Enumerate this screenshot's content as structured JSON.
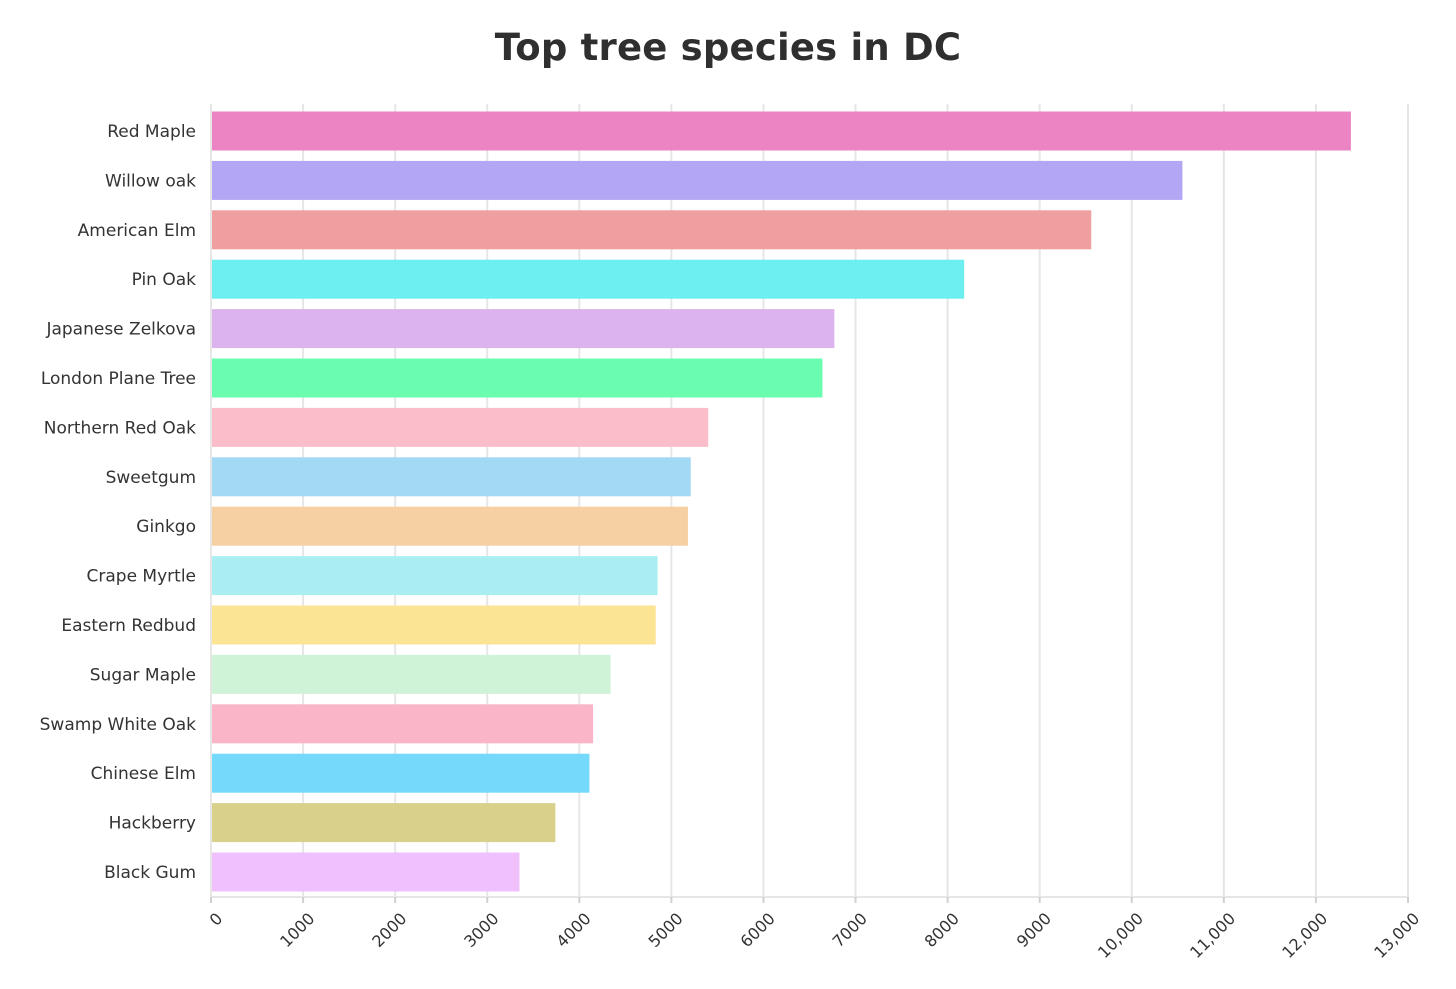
{
  "chart_data": {
    "type": "bar",
    "orientation": "horizontal",
    "title": "Top tree species in DC",
    "xlabel": "",
    "ylabel": "",
    "xlim": [
      0,
      13000
    ],
    "grid": true,
    "legend": "none",
    "categories": [
      "Red Maple",
      "Willow oak",
      "American Elm",
      "Pin Oak",
      "Japanese Zelkova",
      "London Plane Tree",
      "Northern Red Oak",
      "Sweetgum",
      "Ginkgo",
      "Crape Myrtle",
      "Eastern Redbud",
      "Sugar Maple",
      "Swamp White Oak",
      "Chinese Elm",
      "Hackberry",
      "Black Gum"
    ],
    "values": [
      12380,
      10550,
      9560,
      8180,
      6770,
      6640,
      5400,
      5210,
      5180,
      4850,
      4830,
      4340,
      4150,
      4110,
      3740,
      3350
    ],
    "colors": [
      "#ec84c3",
      "#b3a6f4",
      "#ef9f9f",
      "#6defef",
      "#dcb3ee",
      "#6afdb0",
      "#fbbdca",
      "#a3d9f5",
      "#f6d0a2",
      "#aaeef2",
      "#fce495",
      "#cff3d7",
      "#fbb5c8",
      "#75d9fb",
      "#d9d08c",
      "#efc0fb"
    ],
    "xticks": [
      0,
      1000,
      2000,
      3000,
      4000,
      5000,
      6000,
      7000,
      8000,
      9000,
      10000,
      11000,
      12000,
      13000
    ],
    "xtick_labels": [
      "0",
      "1000",
      "2000",
      "3000",
      "4000",
      "5000",
      "6000",
      "7000",
      "8000",
      "9000",
      "10,000",
      "11,000",
      "12,000",
      "13,000"
    ]
  }
}
